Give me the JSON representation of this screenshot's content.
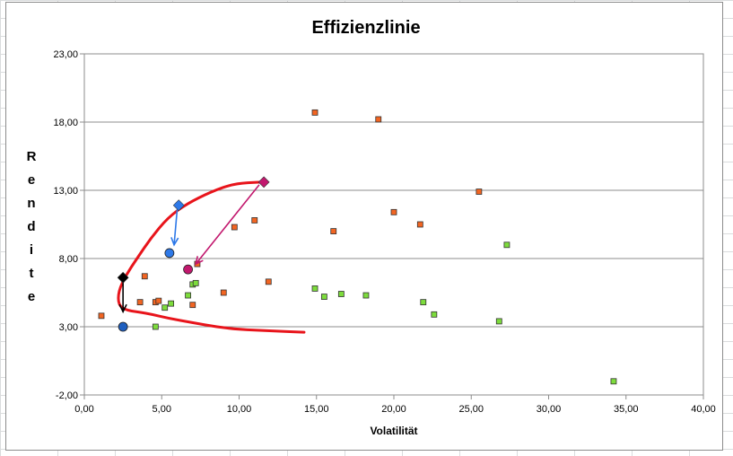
{
  "chart_data": {
    "type": "scatter",
    "title": "Effizienzlinie",
    "xlabel": "Volatilität",
    "ylabel": "Rendite",
    "xlim": [
      0,
      40
    ],
    "ylim": [
      -2,
      23
    ],
    "xticks": [
      "0,00",
      "5,00",
      "10,00",
      "15,00",
      "20,00",
      "25,00",
      "30,00",
      "35,00",
      "40,00"
    ],
    "yticks": [
      "-2,00",
      "3,00",
      "8,00",
      "13,00",
      "18,00",
      "23,00"
    ],
    "grid": "horizontal",
    "series": [
      {
        "color": "#f26522",
        "marker": "square",
        "points": [
          [
            1.1,
            3.8
          ],
          [
            3.6,
            4.8
          ],
          [
            3.9,
            6.7
          ],
          [
            4.6,
            4.8
          ],
          [
            4.8,
            4.9
          ],
          [
            7.0,
            4.6
          ],
          [
            7.3,
            7.6
          ],
          [
            9.0,
            5.5
          ],
          [
            9.7,
            10.3
          ],
          [
            11.0,
            10.8
          ],
          [
            11.9,
            6.3
          ],
          [
            14.9,
            18.7
          ],
          [
            16.1,
            10.0
          ],
          [
            19.0,
            18.2
          ],
          [
            20.0,
            11.4
          ],
          [
            21.7,
            10.5
          ],
          [
            25.5,
            12.9
          ]
        ]
      },
      {
        "color": "#7ddc3c",
        "marker": "square",
        "points": [
          [
            4.6,
            3.0
          ],
          [
            5.2,
            4.4
          ],
          [
            5.6,
            4.7
          ],
          [
            6.7,
            5.3
          ],
          [
            7.0,
            6.1
          ],
          [
            7.2,
            6.2
          ],
          [
            14.9,
            5.8
          ],
          [
            15.5,
            5.2
          ],
          [
            16.6,
            5.4
          ],
          [
            18.2,
            5.3
          ],
          [
            21.9,
            4.8
          ],
          [
            22.6,
            3.9
          ],
          [
            26.8,
            3.4
          ],
          [
            27.3,
            9.0
          ],
          [
            34.2,
            -1.0
          ]
        ]
      }
    ],
    "highlight_points": [
      {
        "color": "#000000",
        "marker": "diamond",
        "x": 2.5,
        "y": 6.6
      },
      {
        "color": "#1f5fbf",
        "marker": "circle",
        "x": 2.5,
        "y": 3.0
      },
      {
        "color": "#2e79e8",
        "marker": "diamond",
        "x": 6.1,
        "y": 11.9
      },
      {
        "color": "#2e79e8",
        "marker": "circle",
        "x": 5.5,
        "y": 8.4
      },
      {
        "color": "#c2186e",
        "marker": "diamond",
        "x": 11.6,
        "y": 13.6
      },
      {
        "color": "#c2186e",
        "marker": "circle",
        "x": 6.7,
        "y": 7.2
      }
    ],
    "arrows": [
      {
        "color": "#000000",
        "from": [
          2.5,
          6.4
        ],
        "to": [
          2.5,
          4.1
        ]
      },
      {
        "color": "#2e79e8",
        "from": [
          6.0,
          11.6
        ],
        "to": [
          5.8,
          9.0
        ]
      },
      {
        "color": "#c2186e",
        "from": [
          11.3,
          13.4
        ],
        "to": [
          7.2,
          7.6
        ]
      }
    ],
    "efficient_frontier": {
      "color": "#e8141b",
      "points": [
        [
          14.2,
          2.6
        ],
        [
          12.0,
          2.7
        ],
        [
          10.0,
          2.8
        ],
        [
          8.5,
          3.0
        ],
        [
          7.0,
          3.3
        ],
        [
          5.5,
          3.6
        ],
        [
          4.0,
          4.0
        ],
        [
          2.7,
          4.2
        ],
        [
          2.2,
          4.6
        ],
        [
          2.2,
          5.6
        ],
        [
          2.7,
          6.8
        ],
        [
          3.4,
          8.0
        ],
        [
          4.3,
          9.5
        ],
        [
          5.4,
          11.0
        ],
        [
          6.6,
          12.0
        ],
        [
          8.2,
          12.9
        ],
        [
          9.7,
          13.5
        ],
        [
          11.4,
          13.6
        ]
      ]
    }
  }
}
